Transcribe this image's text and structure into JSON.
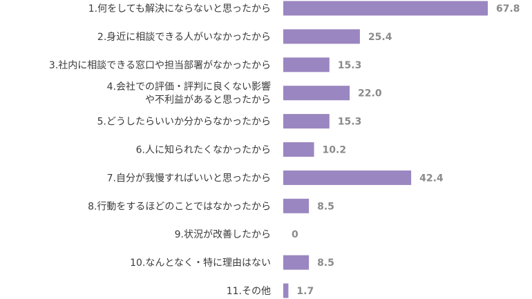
{
  "chart_data": {
    "type": "bar",
    "orientation": "horizontal",
    "categories": [
      [
        "1.何をしても解決にならないと思ったから"
      ],
      [
        "2.身近に相談できる人がいなかったから"
      ],
      [
        "3.社内に相談できる窓口や担当部署がなかったから"
      ],
      [
        "4.会社での評価・評判に良くない影響",
        "や不利益があると思ったから"
      ],
      [
        "5.どうしたらいいか分からなかったから"
      ],
      [
        "6.人に知られたくなかったから"
      ],
      [
        "7.自分が我慢すればいいと思ったから"
      ],
      [
        "8.行動をするほどのことではなかったから"
      ],
      [
        "9.状況が改善したから"
      ],
      [
        "10.なんとなく・特に理由はない"
      ],
      [
        "11.その他"
      ]
    ],
    "values": [
      67.8,
      25.4,
      15.3,
      22.0,
      15.3,
      10.2,
      42.4,
      8.5,
      0,
      8.5,
      1.7
    ],
    "value_labels": [
      "67.8",
      "25.4",
      "15.3",
      "22.0",
      "15.3",
      "10.2",
      "42.4",
      "8.5",
      "0",
      "8.5",
      "1.7"
    ],
    "xlim": [
      0,
      67.8
    ],
    "bar_color": "#9a86c0",
    "grid": false
  }
}
